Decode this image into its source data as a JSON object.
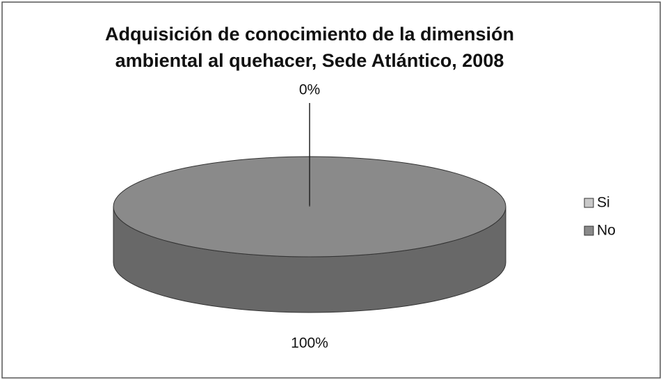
{
  "chart_data": {
    "type": "pie",
    "title": "Adquisición de conocimiento de la dimensión ambiental al quehacer, Sede Atlántico, 2008",
    "categories": [
      "Si",
      "No"
    ],
    "values": [
      0,
      100
    ],
    "value_labels": [
      "0%",
      "100%"
    ],
    "colors": [
      "#c9c9c9",
      "#8a8a8a"
    ],
    "legend": "right"
  }
}
